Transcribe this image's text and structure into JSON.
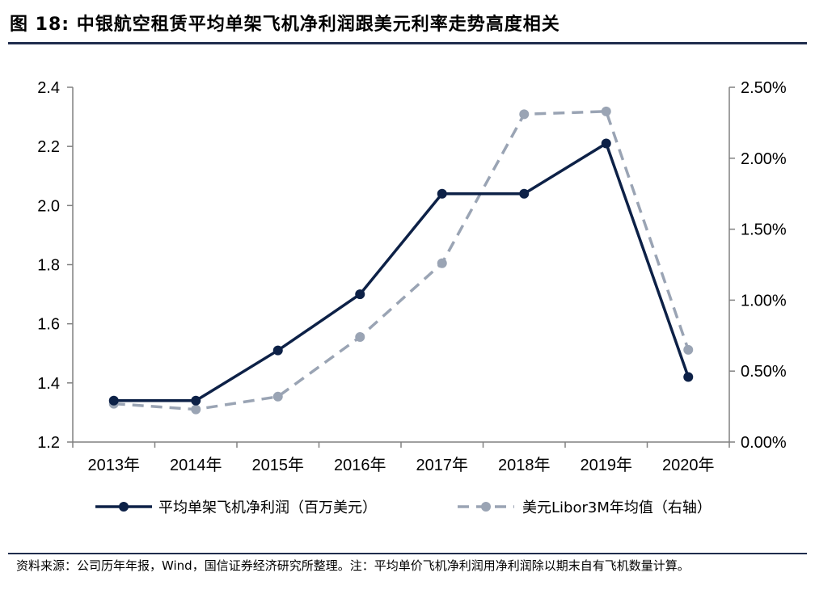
{
  "header": {
    "title": "图 18:  中银航空租赁平均单架飞机净利润跟美元利率走势高度相关"
  },
  "footer": {
    "source": "资料来源：公司历年年报，Wind，国信证券经济研究所整理。注：平均单价飞机净利润用净利润除以期末自有飞机数量计算。"
  },
  "colors": {
    "series1": "#0d2147",
    "series2": "#9aa4b4",
    "axis": "#808080"
  },
  "chart_data": {
    "type": "line",
    "categories": [
      "2013年",
      "2014年",
      "2015年",
      "2016年",
      "2017年",
      "2018年",
      "2019年",
      "2020年"
    ],
    "series": [
      {
        "name": "平均单架飞机净利润（百万美元）",
        "axis": "left",
        "values": [
          1.34,
          1.34,
          1.51,
          1.7,
          2.04,
          2.04,
          2.21,
          1.42
        ]
      },
      {
        "name": "美元Libor3M年均值（右轴）",
        "axis": "right",
        "values": [
          0.27,
          0.23,
          0.32,
          0.74,
          1.26,
          2.31,
          2.33,
          0.65
        ]
      }
    ],
    "y_left": {
      "min": 1.2,
      "max": 2.4,
      "ticks": [
        "1.2",
        "1.4",
        "1.6",
        "1.8",
        "2.0",
        "2.2",
        "2.4"
      ]
    },
    "y_right": {
      "min": 0,
      "max": 2.5,
      "ticks": [
        "0.00%",
        "0.50%",
        "1.00%",
        "1.50%",
        "2.00%",
        "2.50%"
      ]
    },
    "grid": false,
    "legend_position": "bottom"
  }
}
